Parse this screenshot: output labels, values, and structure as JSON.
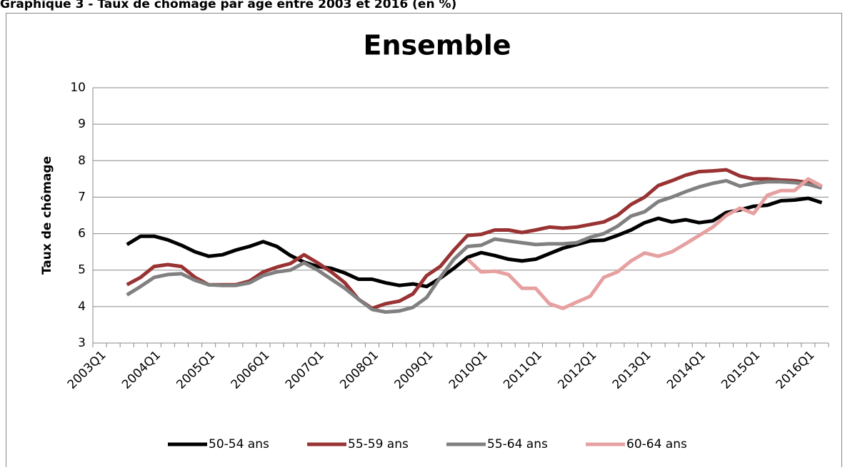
{
  "header": {
    "title": "Graphique 3 - Taux de chômage par âge entre 2003 et 2016 (en %)"
  },
  "chart_data": {
    "type": "line",
    "title": "Ensemble",
    "y_label": "Taux de chômage",
    "categories": [
      "2003Q1",
      null,
      null,
      null,
      "2004Q1",
      null,
      null,
      null,
      "2005Q1",
      null,
      null,
      null,
      "2006Q1",
      null,
      null,
      null,
      "2007Q1",
      null,
      null,
      null,
      "2008Q1",
      null,
      null,
      null,
      "2009Q1",
      null,
      null,
      null,
      "2010Q1",
      null,
      null,
      null,
      "2011Q1",
      null,
      null,
      null,
      "2012Q1",
      null,
      null,
      null,
      "2013Q1",
      null,
      null,
      null,
      "2014Q1",
      null,
      null,
      null,
      "2015Q1",
      null,
      null,
      null,
      "2016Q1",
      null
    ],
    "ylim": [
      3,
      10
    ],
    "yticks": [
      3,
      4,
      5,
      6,
      7,
      8,
      9,
      10
    ],
    "grid": true,
    "legend": "bottom",
    "series": [
      {
        "name": "50-54 ans",
        "color": "#000000",
        "values": [
          null,
          null,
          5.7,
          5.93,
          5.93,
          5.83,
          5.68,
          5.5,
          5.38,
          5.42,
          5.55,
          5.65,
          5.78,
          5.65,
          5.4,
          5.22,
          5.1,
          5.05,
          4.92,
          4.75,
          4.75,
          4.65,
          4.58,
          4.62,
          4.55,
          4.78,
          5.05,
          5.35,
          5.48,
          5.4,
          5.3,
          5.25,
          5.3,
          5.45,
          5.6,
          5.7,
          5.8,
          5.82,
          5.95,
          6.1,
          6.3,
          6.42,
          6.32,
          6.38,
          6.3,
          6.35,
          6.58,
          6.65,
          6.75,
          6.78,
          6.9,
          6.92,
          6.97,
          6.85
        ]
      },
      {
        "name": "55-59 ans",
        "color": "#993333",
        "values": [
          null,
          null,
          4.6,
          4.8,
          5.1,
          5.15,
          5.1,
          4.8,
          4.6,
          4.6,
          4.6,
          4.7,
          4.95,
          5.08,
          5.18,
          5.42,
          5.2,
          4.95,
          4.65,
          4.2,
          3.95,
          4.08,
          4.15,
          4.35,
          4.85,
          5.1,
          5.55,
          5.95,
          5.98,
          6.1,
          6.1,
          6.03,
          6.1,
          6.18,
          6.15,
          6.18,
          6.25,
          6.32,
          6.5,
          6.8,
          7.0,
          7.32,
          7.45,
          7.6,
          7.7,
          7.72,
          7.75,
          7.58,
          7.5,
          7.5,
          7.47,
          7.45,
          7.4,
          7.28
        ]
      },
      {
        "name": "55-64 ans",
        "color": "#808080",
        "values": [
          null,
          null,
          4.32,
          4.55,
          4.8,
          4.88,
          4.9,
          4.72,
          4.6,
          4.58,
          4.58,
          4.65,
          4.85,
          4.95,
          5.0,
          5.2,
          5.0,
          4.75,
          4.5,
          4.2,
          3.92,
          3.85,
          3.88,
          3.98,
          4.25,
          4.8,
          5.3,
          5.65,
          5.68,
          5.85,
          5.8,
          5.75,
          5.7,
          5.72,
          5.72,
          5.75,
          5.9,
          6.0,
          6.2,
          6.48,
          6.6,
          6.88,
          7.0,
          7.15,
          7.28,
          7.38,
          7.45,
          7.3,
          7.38,
          7.42,
          7.42,
          7.4,
          7.35,
          7.25
        ]
      },
      {
        "name": "60-64 ans",
        "color": "#e6a0a0",
        "values": [
          null,
          null,
          null,
          null,
          null,
          null,
          null,
          null,
          null,
          null,
          null,
          null,
          null,
          null,
          null,
          null,
          null,
          null,
          null,
          null,
          null,
          null,
          null,
          null,
          null,
          null,
          null,
          5.3,
          4.95,
          4.97,
          4.88,
          4.5,
          4.5,
          4.08,
          3.95,
          4.12,
          4.28,
          4.8,
          4.95,
          5.25,
          5.47,
          5.38,
          5.5,
          5.72,
          5.95,
          6.18,
          6.5,
          6.7,
          6.55,
          7.05,
          7.18,
          7.18,
          7.5,
          7.3
        ]
      }
    ]
  }
}
